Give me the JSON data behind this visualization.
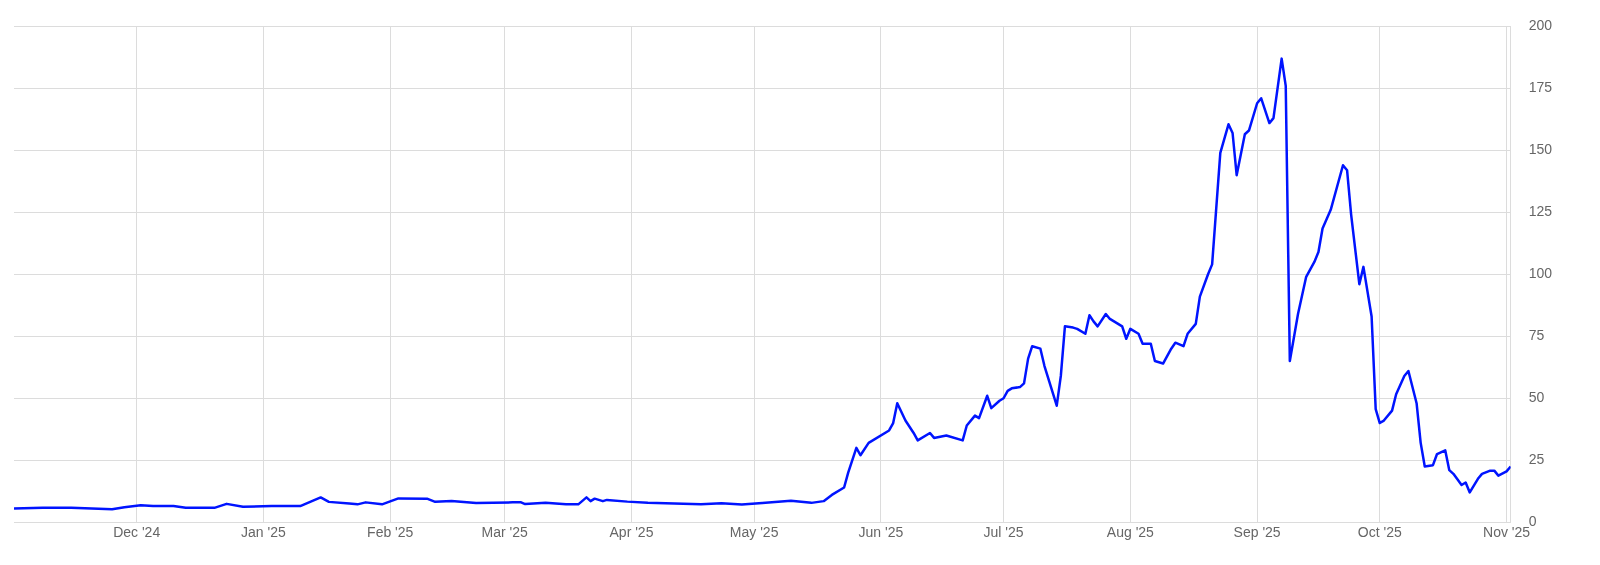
{
  "chart_data": {
    "type": "line",
    "x": [
      "2024-11-01",
      "2024-11-08",
      "2024-11-15",
      "2024-11-20",
      "2024-11-25",
      "2024-11-28",
      "2024-12-02",
      "2024-12-05",
      "2024-12-10",
      "2024-12-13",
      "2024-12-20",
      "2024-12-23",
      "2024-12-27",
      "2025-01-03",
      "2025-01-10",
      "2025-01-15",
      "2025-01-17",
      "2025-01-22",
      "2025-01-24",
      "2025-01-26",
      "2025-01-30",
      "2025-02-03",
      "2025-02-10",
      "2025-02-12",
      "2025-02-16",
      "2025-02-22",
      "2025-03-03",
      "2025-03-05",
      "2025-03-06",
      "2025-03-11",
      "2025-03-16",
      "2025-03-19",
      "2025-03-21",
      "2025-03-22",
      "2025-03-23",
      "2025-03-25",
      "2025-03-26",
      "2025-03-31",
      "2025-04-05",
      "2025-04-18",
      "2025-04-23",
      "2025-04-28",
      "2025-05-03",
      "2025-05-10",
      "2025-05-15",
      "2025-05-18",
      "2025-05-20",
      "2025-05-23",
      "2025-05-24",
      "2025-05-26",
      "2025-05-27",
      "2025-05-29",
      "2025-06-03",
      "2025-06-04",
      "2025-06-05",
      "2025-06-07",
      "2025-06-09",
      "2025-06-10",
      "2025-06-13",
      "2025-06-14",
      "2025-06-17",
      "2025-06-21",
      "2025-06-22",
      "2025-06-24",
      "2025-06-25",
      "2025-06-27",
      "2025-06-28",
      "2025-06-30",
      "2025-07-01",
      "2025-07-02",
      "2025-07-03",
      "2025-07-05",
      "2025-07-06",
      "2025-07-07",
      "2025-07-08",
      "2025-07-10",
      "2025-07-11",
      "2025-07-14",
      "2025-07-15",
      "2025-07-16",
      "2025-07-18",
      "2025-07-19",
      "2025-07-21",
      "2025-07-22",
      "2025-07-23",
      "2025-07-24",
      "2025-07-26",
      "2025-07-27",
      "2025-07-28",
      "2025-07-30",
      "2025-07-31",
      "2025-08-01",
      "2025-08-03",
      "2025-08-04",
      "2025-08-06",
      "2025-08-07",
      "2025-08-09",
      "2025-08-11",
      "2025-08-12",
      "2025-08-14",
      "2025-08-15",
      "2025-08-17",
      "2025-08-18",
      "2025-08-20",
      "2025-08-21",
      "2025-08-23",
      "2025-08-25",
      "2025-08-26",
      "2025-08-27",
      "2025-08-29",
      "2025-08-30",
      "2025-09-01",
      "2025-09-02",
      "2025-09-04",
      "2025-09-05",
      "2025-09-07",
      "2025-09-08",
      "2025-09-09",
      "2025-09-11",
      "2025-09-13",
      "2025-09-15",
      "2025-09-16",
      "2025-09-17",
      "2025-09-19",
      "2025-09-22",
      "2025-09-23",
      "2025-09-24",
      "2025-09-26",
      "2025-09-27",
      "2025-09-29",
      "2025-09-30",
      "2025-10-01",
      "2025-10-02",
      "2025-10-04",
      "2025-10-05",
      "2025-10-07",
      "2025-10-08",
      "2025-10-10",
      "2025-10-11",
      "2025-10-12",
      "2025-10-14",
      "2025-10-15",
      "2025-10-17",
      "2025-10-18",
      "2025-10-19",
      "2025-10-21",
      "2025-10-22",
      "2025-10-23",
      "2025-10-25",
      "2025-10-26",
      "2025-10-28",
      "2025-10-29",
      "2025-10-30",
      "2025-11-01",
      "2025-11-02"
    ],
    "series": [
      {
        "color": "#0014ff",
        "values": [
          5.5,
          5.8,
          5.8,
          5.5,
          5.2,
          6,
          6.8,
          6.5,
          6.5,
          5.8,
          5.8,
          7.4,
          6.2,
          6.5,
          6.5,
          10,
          8.2,
          7.5,
          7.2,
          8,
          7.2,
          9.6,
          9.5,
          8.2,
          8.6,
          7.7,
          8,
          8,
          7.3,
          7.8,
          7.2,
          7.2,
          10,
          8.5,
          9.5,
          8.5,
          9,
          8.3,
          7.8,
          7.2,
          7.6,
          7.1,
          7.7,
          8.7,
          7.8,
          8.5,
          11,
          14,
          20,
          30,
          27,
          32,
          37,
          40,
          48,
          41,
          36,
          33,
          36,
          34,
          35,
          33,
          39,
          43,
          42,
          51,
          46,
          49,
          50,
          53,
          54,
          54.5,
          56,
          66,
          71,
          70,
          63,
          47,
          59,
          79,
          78.5,
          78,
          76,
          83.5,
          81,
          79,
          84,
          82,
          81,
          79,
          74,
          78,
          76,
          72,
          72,
          65,
          64,
          70,
          72.4,
          71,
          76,
          80,
          91,
          100,
          104,
          149,
          160.5,
          157,
          140,
          156.5,
          158,
          169,
          171,
          161,
          163,
          187,
          176,
          65,
          84,
          99,
          105,
          109,
          118.5,
          126,
          144,
          142,
          124,
          96,
          103,
          83,
          45.6,
          40,
          41,
          45,
          51.6,
          59,
          61,
          48,
          32,
          22.5,
          23,
          27.5,
          29,
          21,
          19.5,
          15,
          16,
          12,
          17.5,
          19.5,
          20.8,
          20.8,
          18.8,
          20.5,
          22.5
        ]
      }
    ],
    "xlim": [
      "2024-11-01",
      "2025-11-02"
    ],
    "xticks": [
      {
        "value": "2024-12-01",
        "label": "Dec '24"
      },
      {
        "value": "2025-01-01",
        "label": "Jan '25"
      },
      {
        "value": "2025-02-01",
        "label": "Feb '25"
      },
      {
        "value": "2025-03-01",
        "label": "Mar '25"
      },
      {
        "value": "2025-04-01",
        "label": "Apr '25"
      },
      {
        "value": "2025-05-01",
        "label": "May '25"
      },
      {
        "value": "2025-06-01",
        "label": "Jun '25"
      },
      {
        "value": "2025-07-01",
        "label": "Jul '25"
      },
      {
        "value": "2025-08-01",
        "label": "Aug '25"
      },
      {
        "value": "2025-09-01",
        "label": "Sep '25"
      },
      {
        "value": "2025-10-01",
        "label": "Oct '25"
      },
      {
        "value": "2025-11-01",
        "label": "Nov '25"
      }
    ],
    "ylim": [
      0,
      200
    ],
    "yticks": [
      0,
      25,
      50,
      75,
      100,
      125,
      150,
      175,
      200
    ],
    "grid": true,
    "marker": "none",
    "line_style": "solid"
  }
}
